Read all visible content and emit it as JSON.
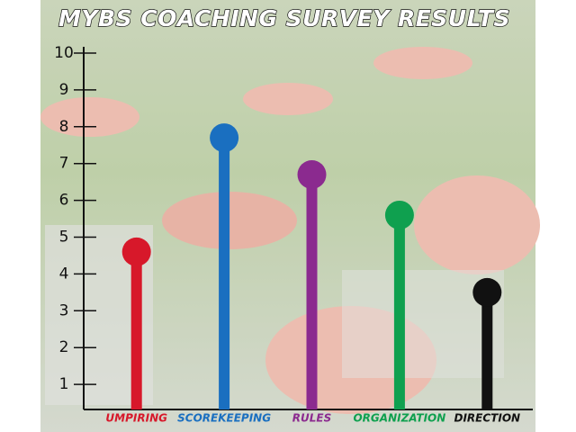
{
  "chart_data": {
    "type": "bar",
    "title": "MYBS COACHING SURVEY RESULTS",
    "categories": [
      "UMPIRING",
      "SCOREKEEPING",
      "RULES",
      "ORGANIZATION",
      "DIRECTION"
    ],
    "values": [
      4.6,
      7.7,
      6.7,
      5.6,
      3.5
    ],
    "colors": [
      "#d7182a",
      "#1a6fc0",
      "#8b2a8f",
      "#0fa04f",
      "#111111"
    ],
    "ylim": [
      0,
      10
    ],
    "yticks": [
      1,
      2,
      3,
      4,
      5,
      6,
      7,
      8,
      9,
      10
    ]
  }
}
